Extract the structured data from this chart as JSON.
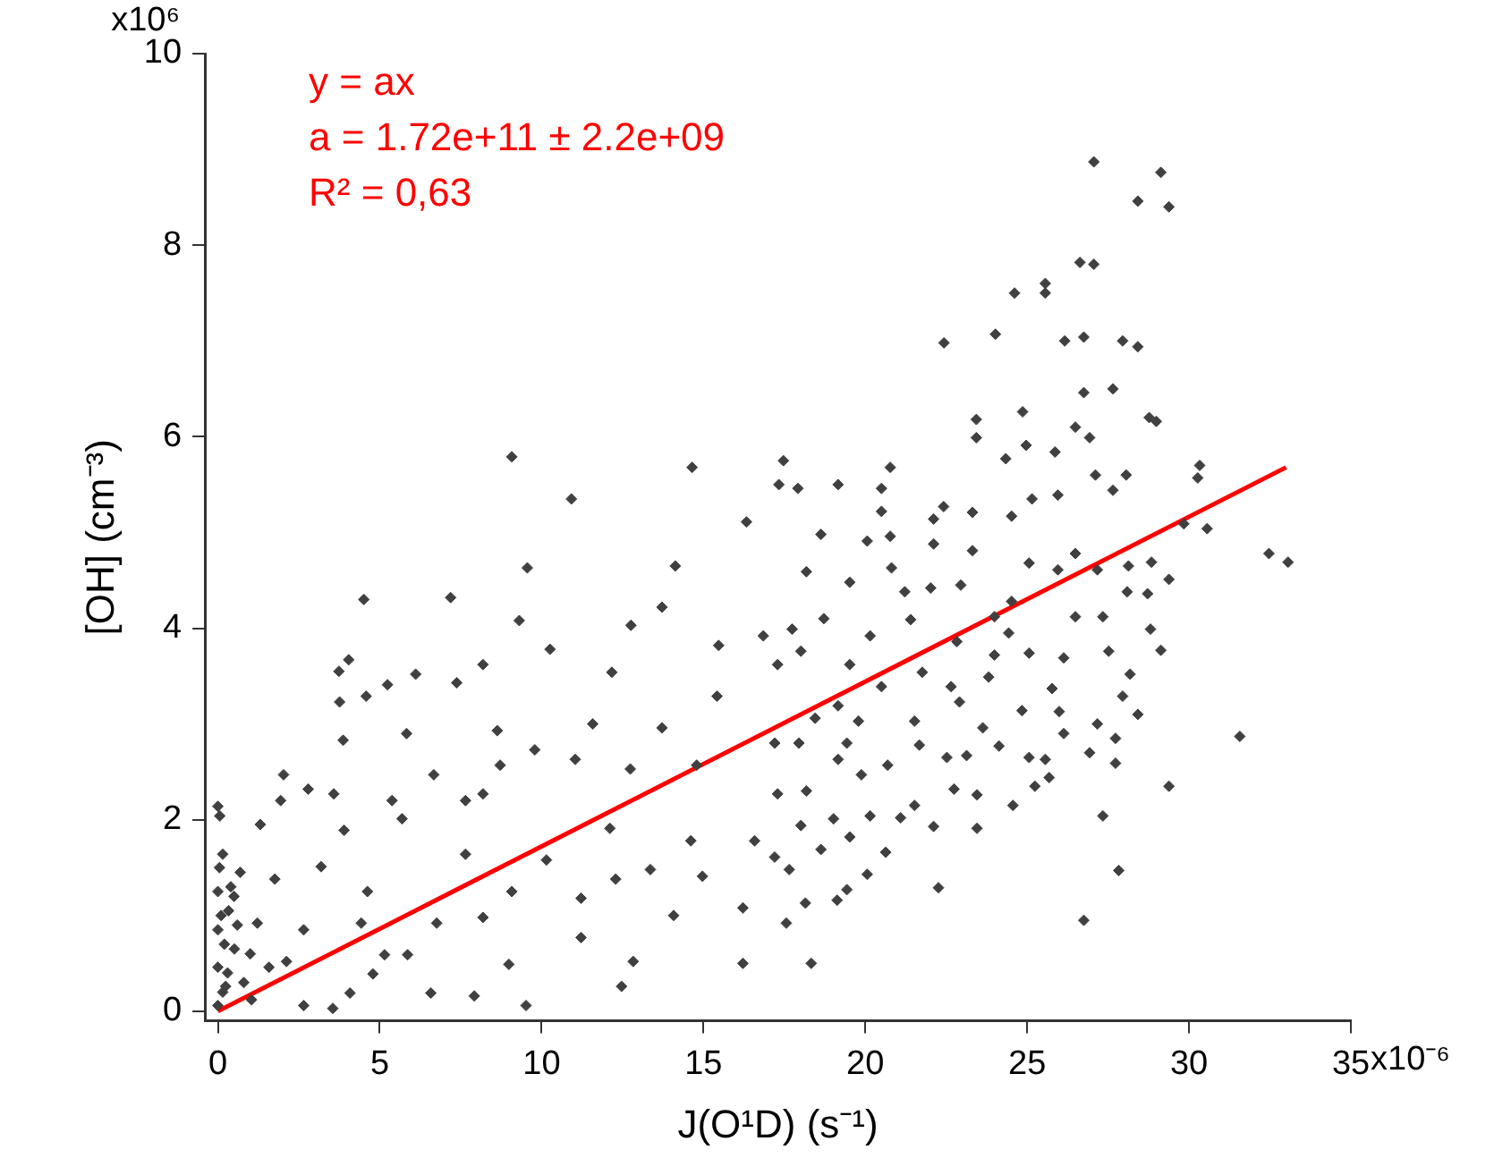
{
  "chart_data": {
    "type": "scatter",
    "xlabel": "J(O¹D) (s⁻¹)",
    "ylabel": "[OH] (cm⁻³)",
    "annotations": [
      "y = ax",
      "a = 1.72e+11 ± 2.2e+09",
      "R² = 0,63",
      "x10⁶",
      "x10⁻⁶"
    ],
    "xlim": [
      -0.4,
      35
    ],
    "ylim": [
      -0.1,
      10
    ],
    "xticks": [
      0,
      5,
      10,
      15,
      20,
      25,
      30,
      35
    ],
    "yticks": [
      0,
      2,
      4,
      6,
      8,
      10
    ],
    "grid": false,
    "legend": false,
    "series": [
      {
        "type": "scatter",
        "marker": "diamond",
        "color": "#404040",
        "x": [
          9.08,
          14.65,
          10.92,
          16.33,
          9.56,
          14.13,
          4.51,
          7.19,
          9.31,
          12.76,
          4.04,
          3.74,
          6.11,
          8.19,
          10.26,
          12.17,
          13.72,
          15.47,
          16.85,
          4.58,
          5.24,
          7.38,
          3.76,
          3.87,
          5.83,
          8.63,
          9.79,
          11.58,
          13.72,
          15.42,
          2.03,
          2.79,
          3.58,
          5.38,
          6.67,
          8.72,
          11.04,
          12.74,
          14.79,
          0,
          0.06,
          1.31,
          1.94,
          3.9,
          5.69,
          7.65,
          8.19,
          10.15,
          12.11,
          13.36,
          14.61,
          16.58,
          0.15,
          0.69,
          1.76,
          3.19,
          4.62,
          7.65,
          9.08,
          11.22,
          12.29,
          14.97,
          16.22,
          0,
          0.33,
          0,
          0.51,
          0,
          0.24,
          0,
          1.22,
          2.12,
          2.65,
          3.55,
          4.08,
          4.79,
          5.15,
          4.43,
          5.86,
          6.76,
          6.58,
          7.92,
          8.19,
          8.99,
          9.52,
          11.22,
          12.47,
          12.83,
          14.08,
          16.22,
          2.65,
          1.04,
          1.58,
          0.1,
          0.2,
          0.4,
          0.3,
          0.6,
          0.8,
          0.15,
          0.5,
          1.0,
          0.05,
          27.06,
          29.13,
          28.42,
          29.38,
          26.63,
          27.06,
          25.56,
          25.56,
          24.61,
          24.02,
          22.43,
          26.16,
          26.75,
          27.95,
          28.42,
          26.75,
          27.65,
          24.86,
          23.43,
          23.43,
          28.77,
          28.99,
          24.97,
          26.49,
          26.93,
          17.47,
          17.33,
          19.16,
          20.77,
          17.92,
          24.34,
          25.86,
          30.33,
          30.27,
          27.11,
          28.06,
          20.5,
          20.5,
          18.63,
          20.06,
          22.11,
          22.42,
          23.31,
          24.52,
          25.15,
          25.95,
          27.65,
          29.84,
          30.56,
          32.47,
          33.06,
          20.77,
          18.18,
          19.52,
          20.81,
          22.11,
          22.02,
          23.31,
          25.06,
          25.95,
          26.49,
          27.17,
          28.13,
          28.84,
          29.38,
          28.09,
          28.72,
          27.34,
          26.49,
          24.52,
          23.99,
          22.95,
          21.22,
          18.72,
          17.74,
          20.15,
          21.4,
          24.43,
          28.81,
          29.13,
          27.52,
          26.13,
          25.06,
          23.99,
          22.83,
          21.76,
          18.01,
          17.29,
          19.52,
          20.5,
          22.65,
          23.81,
          25.77,
          28.18,
          27.95,
          28.42,
          25.99,
          24.84,
          23.63,
          22.91,
          21.52,
          19.79,
          18.45,
          19.16,
          17.2,
          17.95,
          19.43,
          21.67,
          24.13,
          26.13,
          27.17,
          27.73,
          31.57,
          26.93,
          27.73,
          25.06,
          25.56,
          23.13,
          22.52,
          20.69,
          19.16,
          29.38,
          25.68,
          25.24,
          23.45,
          22.74,
          21.52,
          19.88,
          18.18,
          17.29,
          24.56,
          27.34,
          23.45,
          22.11,
          21.09,
          20.15,
          19.02,
          18.01,
          18.63,
          19.52,
          20.63,
          17.65,
          17.2,
          20.06,
          27.83,
          19.43,
          22.26,
          19.13,
          18.15,
          17.56,
          26.75,
          18.33
        ],
        "values": [
          5.79,
          5.68,
          5.35,
          5.11,
          4.63,
          4.65,
          4.3,
          4.32,
          4.08,
          4.03,
          3.67,
          3.55,
          3.52,
          3.62,
          3.78,
          3.54,
          4.22,
          3.82,
          3.92,
          3.29,
          3.41,
          3.43,
          3.23,
          2.83,
          2.9,
          2.93,
          2.73,
          3.0,
          2.96,
          3.29,
          2.47,
          2.32,
          2.27,
          2.2,
          2.47,
          2.57,
          2.63,
          2.53,
          2.57,
          2.14,
          2.04,
          1.95,
          2.2,
          1.89,
          2.01,
          2.2,
          2.27,
          1.58,
          1.91,
          1.48,
          1.78,
          1.78,
          1.64,
          1.45,
          1.38,
          1.51,
          1.25,
          1.64,
          1.25,
          1.18,
          1.38,
          1.41,
          1.08,
          1.25,
          1.05,
          0.85,
          0.65,
          0.46,
          0.26,
          0.06,
          0.92,
          0.52,
          0.85,
          0.03,
          0.19,
          0.39,
          0.59,
          0.92,
          0.59,
          0.92,
          0.19,
          0.16,
          0.98,
          0.49,
          0.06,
          0.77,
          0.26,
          0.52,
          1.0,
          0.5,
          0.06,
          0.12,
          0.46,
          1.0,
          0.7,
          1.3,
          0.4,
          0.9,
          0.3,
          0.2,
          1.2,
          0.6,
          1.5,
          8.87,
          8.76,
          8.46,
          8.4,
          7.82,
          7.8,
          7.6,
          7.5,
          7.5,
          7.07,
          6.98,
          7.0,
          7.04,
          7.0,
          6.94,
          6.46,
          6.5,
          6.26,
          6.18,
          5.99,
          6.2,
          6.16,
          5.91,
          6.1,
          5.99,
          5.75,
          5.5,
          5.5,
          5.68,
          5.46,
          5.77,
          5.84,
          5.7,
          5.57,
          5.6,
          5.6,
          5.46,
          5.22,
          4.98,
          4.91,
          5.14,
          5.27,
          5.21,
          5.17,
          5.35,
          5.39,
          5.44,
          5.09,
          5.04,
          4.78,
          4.69,
          4.96,
          4.59,
          4.48,
          4.63,
          4.88,
          4.42,
          4.81,
          4.68,
          4.61,
          4.78,
          4.61,
          4.65,
          4.69,
          4.51,
          4.38,
          4.36,
          4.12,
          4.12,
          4.28,
          4.12,
          4.45,
          4.38,
          4.1,
          3.99,
          3.92,
          4.09,
          3.95,
          3.99,
          3.77,
          3.76,
          3.69,
          3.74,
          3.72,
          3.86,
          3.54,
          3.76,
          3.62,
          3.62,
          3.39,
          3.39,
          3.49,
          3.37,
          3.52,
          3.29,
          3.1,
          3.13,
          3.14,
          2.96,
          3.23,
          3.03,
          3.03,
          3.06,
          3.19,
          2.8,
          2.8,
          2.8,
          2.78,
          2.77,
          2.9,
          3.0,
          2.85,
          2.87,
          2.7,
          2.59,
          2.65,
          2.63,
          2.67,
          2.65,
          2.57,
          2.63,
          2.35,
          2.44,
          2.35,
          2.26,
          2.32,
          2.15,
          2.47,
          2.3,
          2.27,
          2.15,
          2.04,
          1.91,
          1.93,
          2.02,
          2.04,
          2.01,
          1.94,
          1.69,
          1.82,
          1.66,
          1.48,
          1.61,
          1.43,
          1.47,
          1.27,
          1.29,
          1.16,
          1.13,
          0.92,
          0.95,
          0.5
        ]
      },
      {
        "type": "line",
        "marker": "none",
        "line_style": "solid",
        "color": "#ff0000",
        "x": [
          0,
          33
        ],
        "values": [
          0,
          5.68
        ]
      }
    ]
  }
}
